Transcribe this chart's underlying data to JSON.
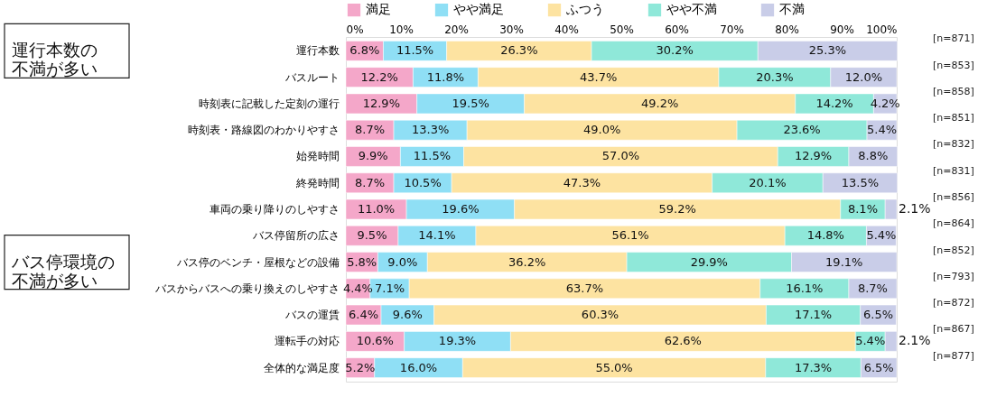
{
  "chart_data": {
    "type": "bar",
    "orientation": "horizontal",
    "stacked": true,
    "legend": "top",
    "categories": [
      "運行本数",
      "バスルート",
      "時刻表に記載した定刻の運行",
      "時刻表・路線図のわかりやすさ",
      "始発時間",
      "終発時間",
      "車両の乗り降りのしやすさ",
      "バス停留所の広さ",
      "バス停のベンチ・屋根などの設備",
      "バスからバスへの乗り換えのしやすさ",
      "バスの運賃",
      "運転手の対応",
      "全体的な満足度"
    ],
    "xlim": [
      0,
      100
    ],
    "xticks": [
      {
        "value": 0,
        "label": "0%"
      },
      {
        "value": 10,
        "label": "10%"
      },
      {
        "value": 20,
        "label": "20%"
      },
      {
        "value": 30,
        "label": "30%"
      },
      {
        "value": 40,
        "label": "40%"
      },
      {
        "value": 50,
        "label": "50%"
      },
      {
        "value": 60,
        "label": "60%"
      },
      {
        "value": 70,
        "label": "70%"
      },
      {
        "value": 80,
        "label": "80%"
      },
      {
        "value": 90,
        "label": "90%"
      },
      {
        "value": 100,
        "label": "100%"
      }
    ],
    "series": [
      {
        "name": "満足",
        "color": "#f4a7c9",
        "values": [
          6.8,
          12.2,
          12.9,
          8.7,
          9.9,
          8.7,
          11.0,
          9.5,
          5.8,
          4.4,
          6.4,
          10.6,
          5.2
        ],
        "value_labels": [
          "6.8%",
          "12.2%",
          "12.9%",
          "8.7%",
          "9.9%",
          "8.7%",
          "11.0%",
          "9.5%",
          "5.8%",
          "4.4%",
          "6.4%",
          "10.6%",
          "5.2%"
        ]
      },
      {
        "name": "やや満足",
        "color": "#8fdff5",
        "values": [
          11.5,
          11.8,
          19.5,
          13.3,
          11.5,
          10.5,
          19.6,
          14.1,
          9.0,
          7.1,
          9.6,
          19.3,
          16.0
        ],
        "value_labels": [
          "11.5%",
          "11.8%",
          "19.5%",
          "13.3%",
          "11.5%",
          "10.5%",
          "19.6%",
          "14.1%",
          "9.0%",
          "7.1%",
          "9.6%",
          "19.3%",
          "16.0%"
        ]
      },
      {
        "name": "ふつう",
        "color": "#fde3a1",
        "values": [
          26.3,
          43.7,
          49.2,
          49.0,
          57.0,
          47.3,
          59.2,
          56.1,
          36.2,
          63.7,
          60.3,
          62.6,
          55.0
        ],
        "value_labels": [
          "26.3%",
          "43.7%",
          "49.2%",
          "49.0%",
          "57.0%",
          "47.3%",
          "59.2%",
          "56.1%",
          "36.2%",
          "63.7%",
          "60.3%",
          "62.6%",
          "55.0%"
        ]
      },
      {
        "name": "やや不満",
        "color": "#8fe8d9",
        "values": [
          30.2,
          20.3,
          14.2,
          23.6,
          12.9,
          20.1,
          8.1,
          14.8,
          29.9,
          16.1,
          17.1,
          5.4,
          17.3
        ],
        "value_labels": [
          "30.2%",
          "20.3%",
          "14.2%",
          "23.6%",
          "12.9%",
          "20.1%",
          "8.1%",
          "14.8%",
          "29.9%",
          "16.1%",
          "17.1%",
          "5.4%",
          "17.3%"
        ]
      },
      {
        "name": "不満",
        "color": "#c9cde8",
        "values": [
          25.3,
          12.0,
          4.2,
          5.4,
          8.8,
          13.5,
          2.1,
          5.4,
          19.1,
          8.7,
          6.5,
          2.1,
          6.5
        ],
        "value_labels": [
          "25.3%",
          "12.0%",
          "4.2%",
          "5.4%",
          "8.8%",
          "13.5%",
          "2.1%",
          "5.4%",
          "19.1%",
          "8.7%",
          "6.5%",
          "2.1%",
          "6.5%"
        ]
      }
    ],
    "annotations": [
      "[n=871]",
      "[n=853]",
      "[n=858]",
      "[n=851]",
      "[n=832]",
      "[n=831]",
      "[n=856]",
      "[n=864]",
      "[n=852]",
      "[n=793]",
      "[n=872]",
      "[n=867]",
      "[n=877]",
      "運行本数の不満が多い",
      "バス停環境の不満が多い"
    ]
  }
}
